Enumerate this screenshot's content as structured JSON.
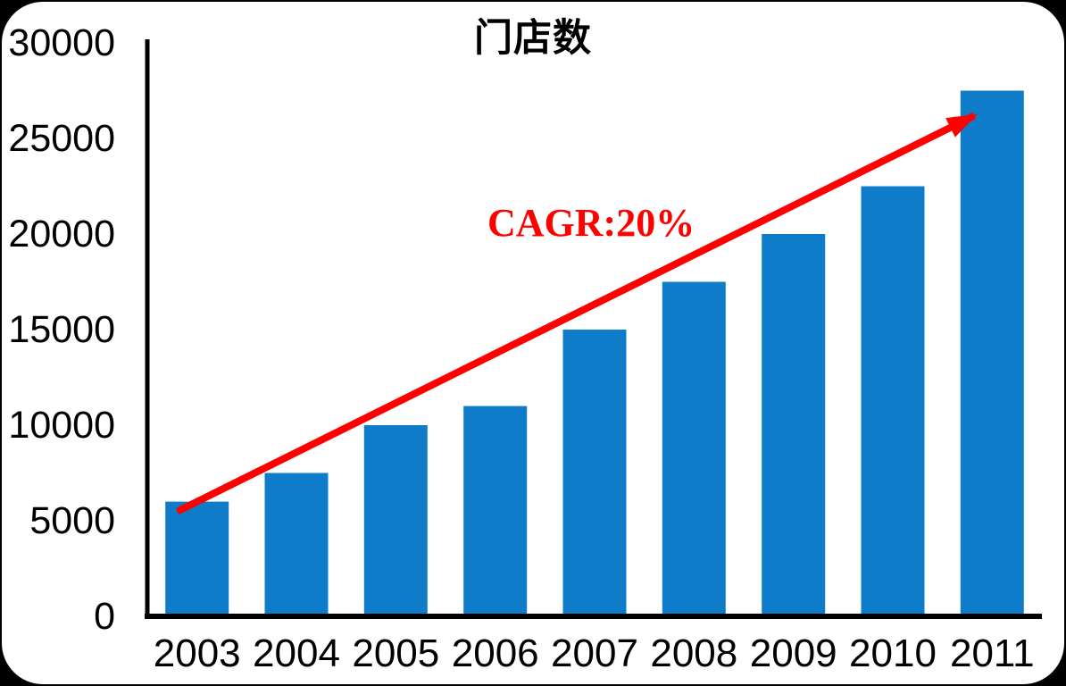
{
  "page": {
    "canvas_background": "#000000",
    "card_background": "#ffffff"
  },
  "chart_data": {
    "type": "bar",
    "title": "门店数",
    "categories": [
      "2003",
      "2004",
      "2005",
      "2006",
      "2007",
      "2008",
      "2009",
      "2010",
      "2011"
    ],
    "values": [
      6000,
      7500,
      10000,
      11000,
      15000,
      17500,
      20000,
      22500,
      27500
    ],
    "xlabel": "",
    "ylabel": "",
    "ylim": [
      0,
      30000
    ],
    "yticks": [
      0,
      5000,
      10000,
      15000,
      20000,
      25000,
      30000
    ],
    "grid": false,
    "legend": "none",
    "bar_color": "#0E7CC9",
    "axis_color": "#000000",
    "annotation": {
      "text": "CAGR:20%",
      "color": "#FF0000"
    },
    "trend_arrow": {
      "from": "2003",
      "to": "2011",
      "color": "#FF0000"
    }
  }
}
